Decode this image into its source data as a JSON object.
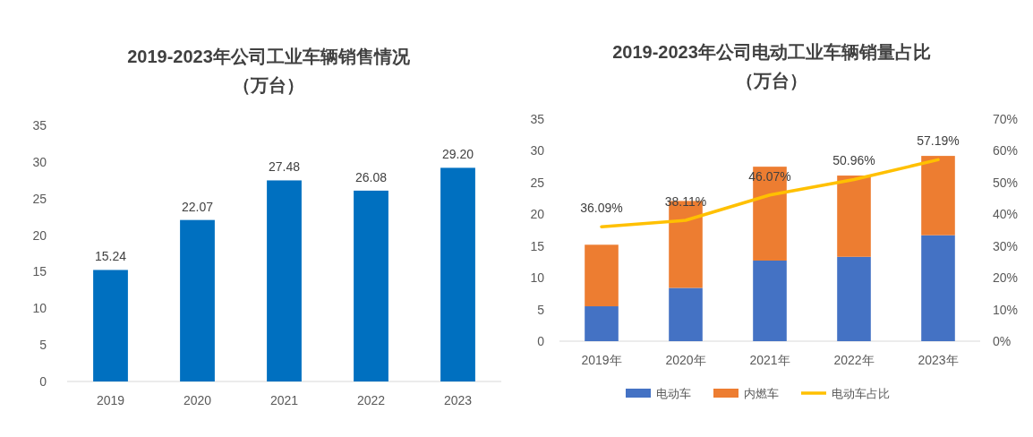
{
  "chart_data": [
    {
      "type": "bar",
      "title": "2019-2023年公司工业车辆销售情况",
      "subtitle": "（万台）",
      "categories": [
        "2019",
        "2020",
        "2021",
        "2022",
        "2023"
      ],
      "values": [
        15.24,
        22.07,
        27.48,
        26.08,
        29.2
      ],
      "value_labels": [
        "15.24",
        "22.07",
        "27.48",
        "26.08",
        "29.20"
      ],
      "color": "#0070c0",
      "ylim": [
        0,
        35
      ],
      "yticks": [
        0,
        5,
        10,
        15,
        20,
        25,
        30,
        35
      ]
    },
    {
      "type": "bar",
      "title": "2019-2023年公司电动工业车辆销量占比",
      "subtitle": "（万台）",
      "categories": [
        "2019年",
        "2020年",
        "2021年",
        "2022年",
        "2023年"
      ],
      "stacked": true,
      "legend": "bottom",
      "ylim": [
        0,
        35
      ],
      "yticks": [
        0,
        5,
        10,
        15,
        20,
        25,
        30,
        35
      ],
      "y2lim": [
        0,
        70
      ],
      "y2ticks": [
        {
          "value": 0,
          "label": "0%"
        },
        {
          "value": 10,
          "label": "10%"
        },
        {
          "value": 20,
          "label": "20%"
        },
        {
          "value": 30,
          "label": "30%"
        },
        {
          "value": 40,
          "label": "40%"
        },
        {
          "value": 50,
          "label": "50%"
        },
        {
          "value": 60,
          "label": "60%"
        },
        {
          "value": 70,
          "label": "70%"
        }
      ],
      "series": [
        {
          "name": "电动车",
          "color": "#4472c4",
          "values": [
            5.5,
            8.4,
            12.7,
            13.3,
            16.7
          ]
        },
        {
          "name": "内燃车",
          "color": "#ed7d31",
          "values": [
            9.7,
            13.7,
            14.8,
            12.8,
            12.5
          ]
        },
        {
          "name": "电动车占比",
          "type": "line",
          "axis": "y2",
          "color": "#ffc000",
          "values": [
            36.09,
            38.11,
            46.07,
            50.96,
            57.19
          ],
          "value_labels": [
            "36.09%",
            "38.11%",
            "46.07%",
            "50.96%",
            "57.19%"
          ]
        }
      ]
    }
  ]
}
